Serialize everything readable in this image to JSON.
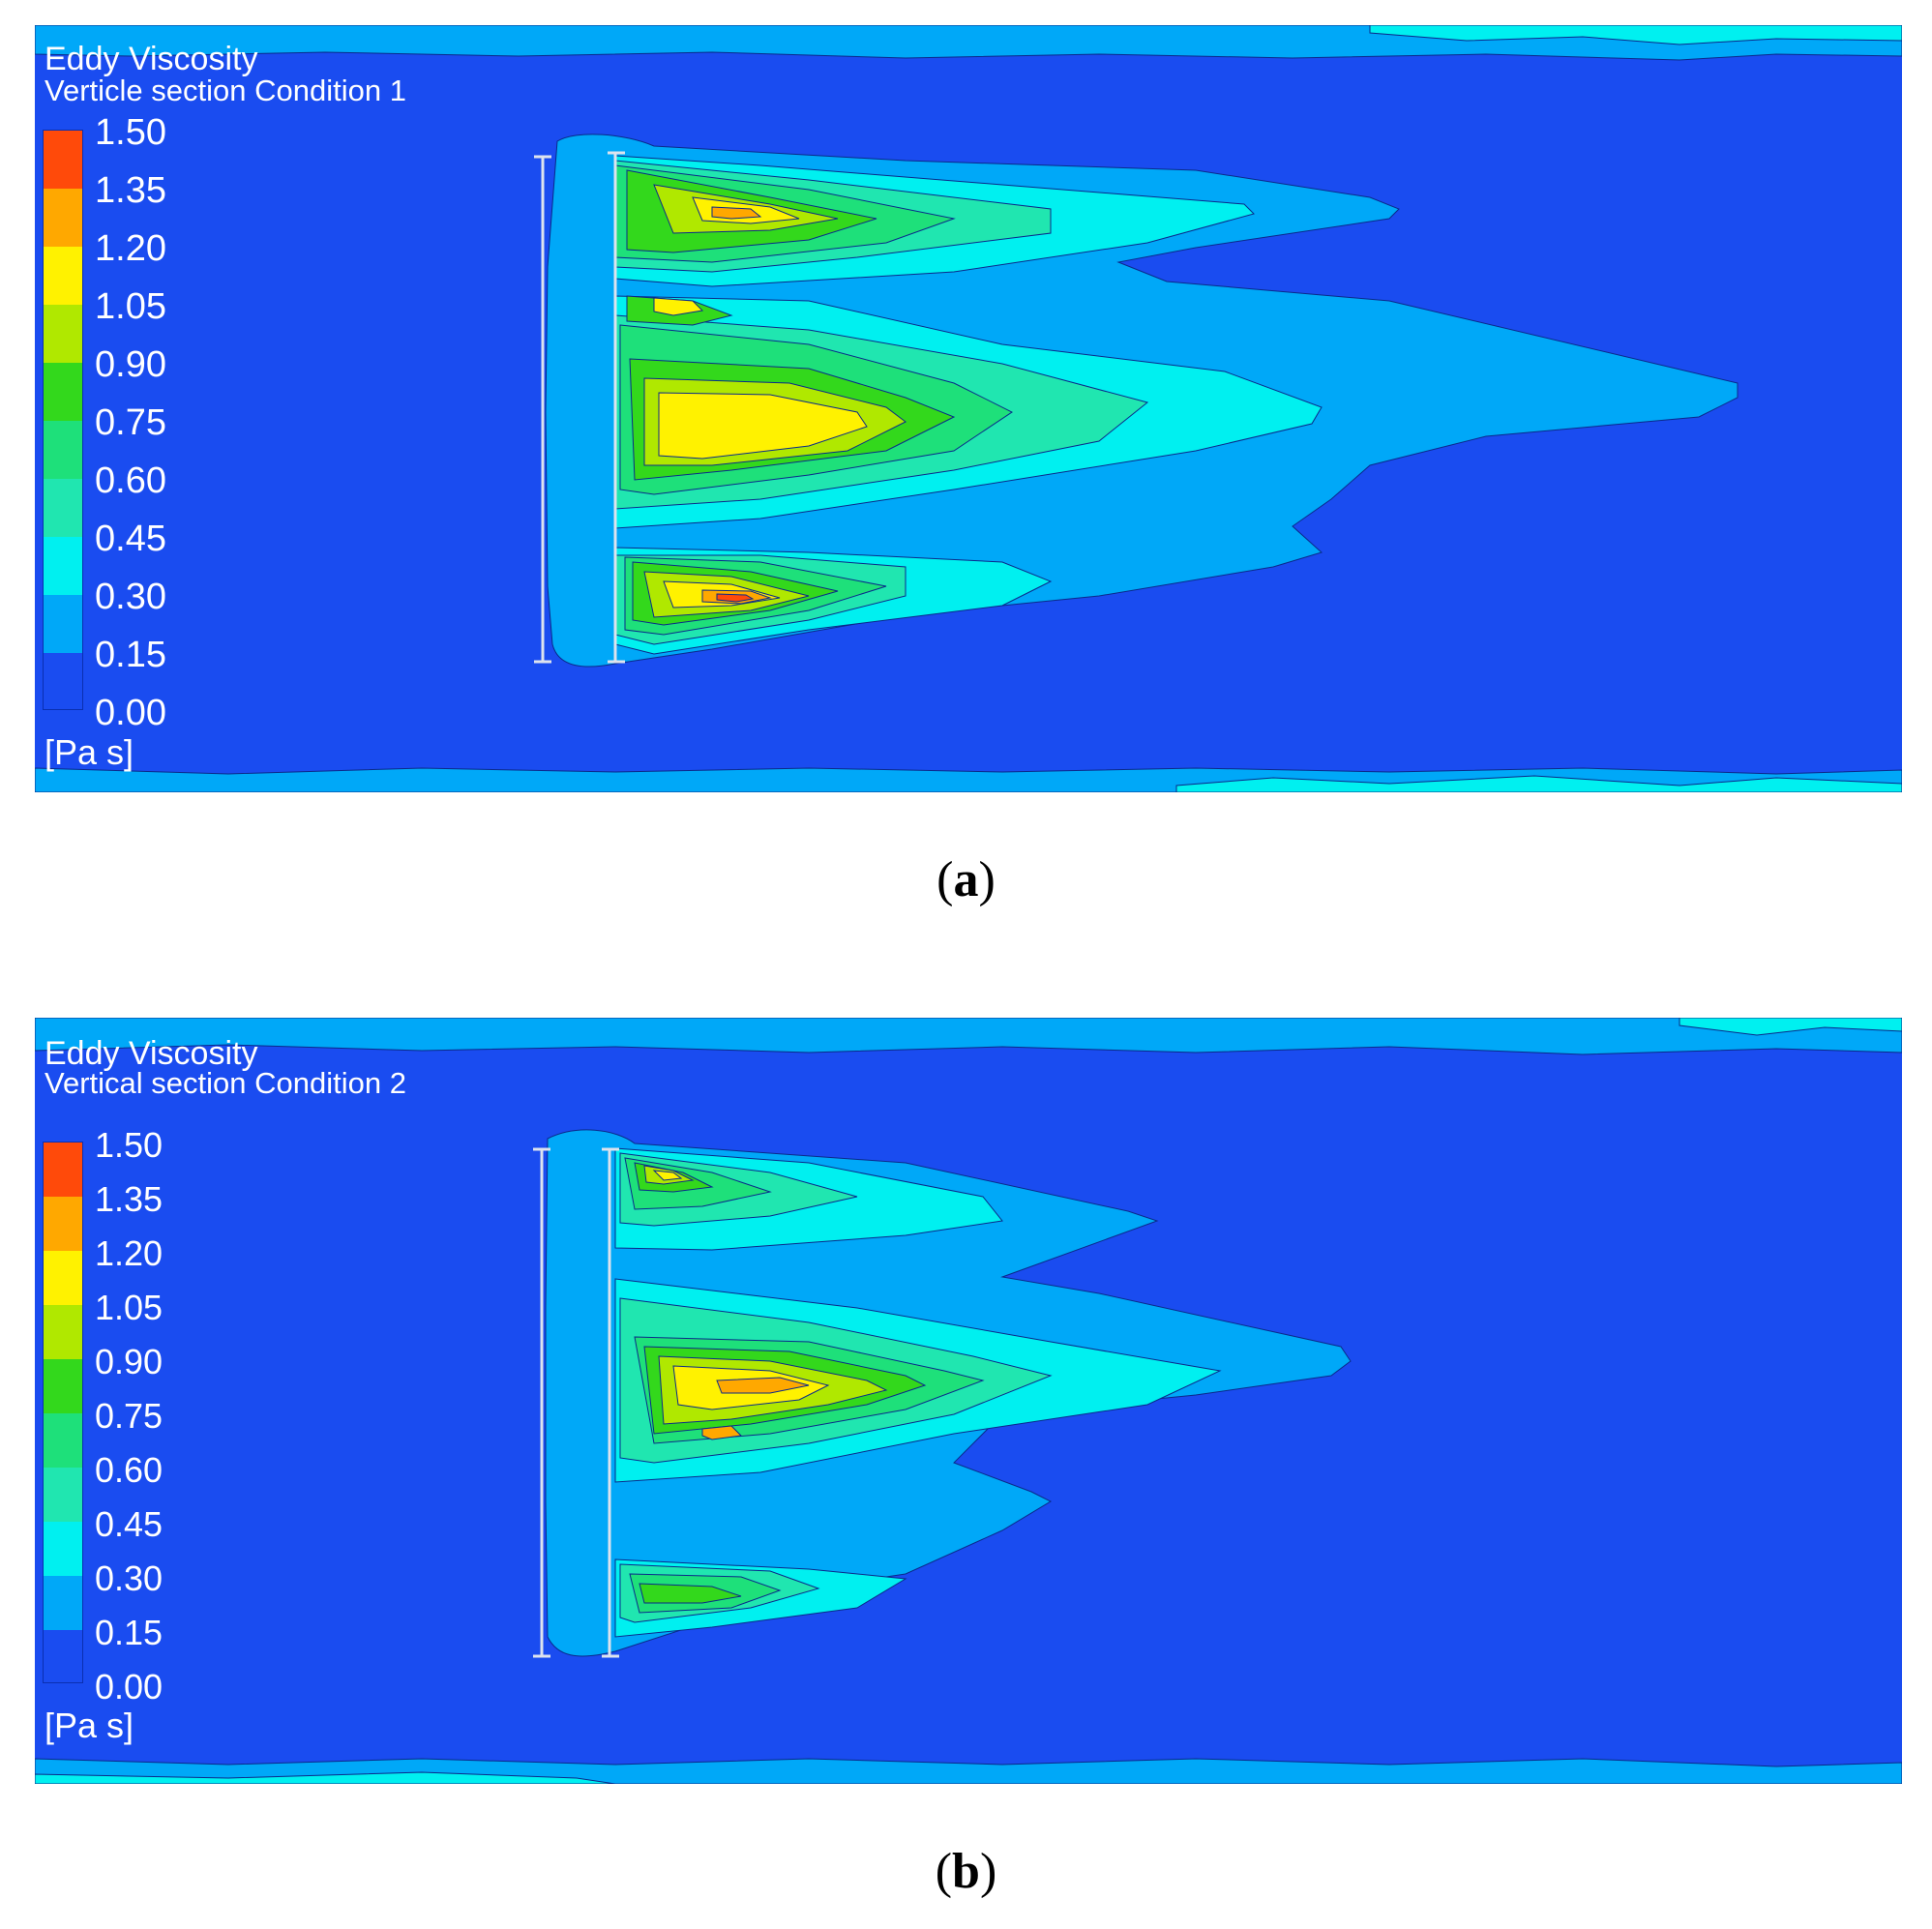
{
  "palette": {
    "background": "#1a4cf0",
    "levels": [
      "#1a4cf0",
      "#00a8f8",
      "#00f0f0",
      "#20e6b0",
      "#1ee07a",
      "#33d81c",
      "#b0e800",
      "#fff200",
      "#ffa800",
      "#ff4a0a"
    ],
    "structure": "#dde3ee"
  },
  "panels": [
    {
      "id": "a",
      "title": "Eddy Viscosity",
      "subtitle": "Verticle section Condition 1",
      "legend_values": [
        "1.50",
        "1.35",
        "1.20",
        "1.05",
        "0.90",
        "0.75",
        "0.60",
        "0.45",
        "0.30",
        "0.15",
        "0.00"
      ],
      "unit": "[Pa s]",
      "caption_letter": "a"
    },
    {
      "id": "b",
      "title": "Eddy Viscosity",
      "subtitle": "Vertical section Condition 2",
      "legend_values": [
        "1.50",
        "1.35",
        "1.20",
        "1.05",
        "0.90",
        "0.75",
        "0.60",
        "0.45",
        "0.30",
        "0.15",
        "0.00"
      ],
      "unit": "[Pa s]",
      "caption_letter": "b"
    }
  ]
}
